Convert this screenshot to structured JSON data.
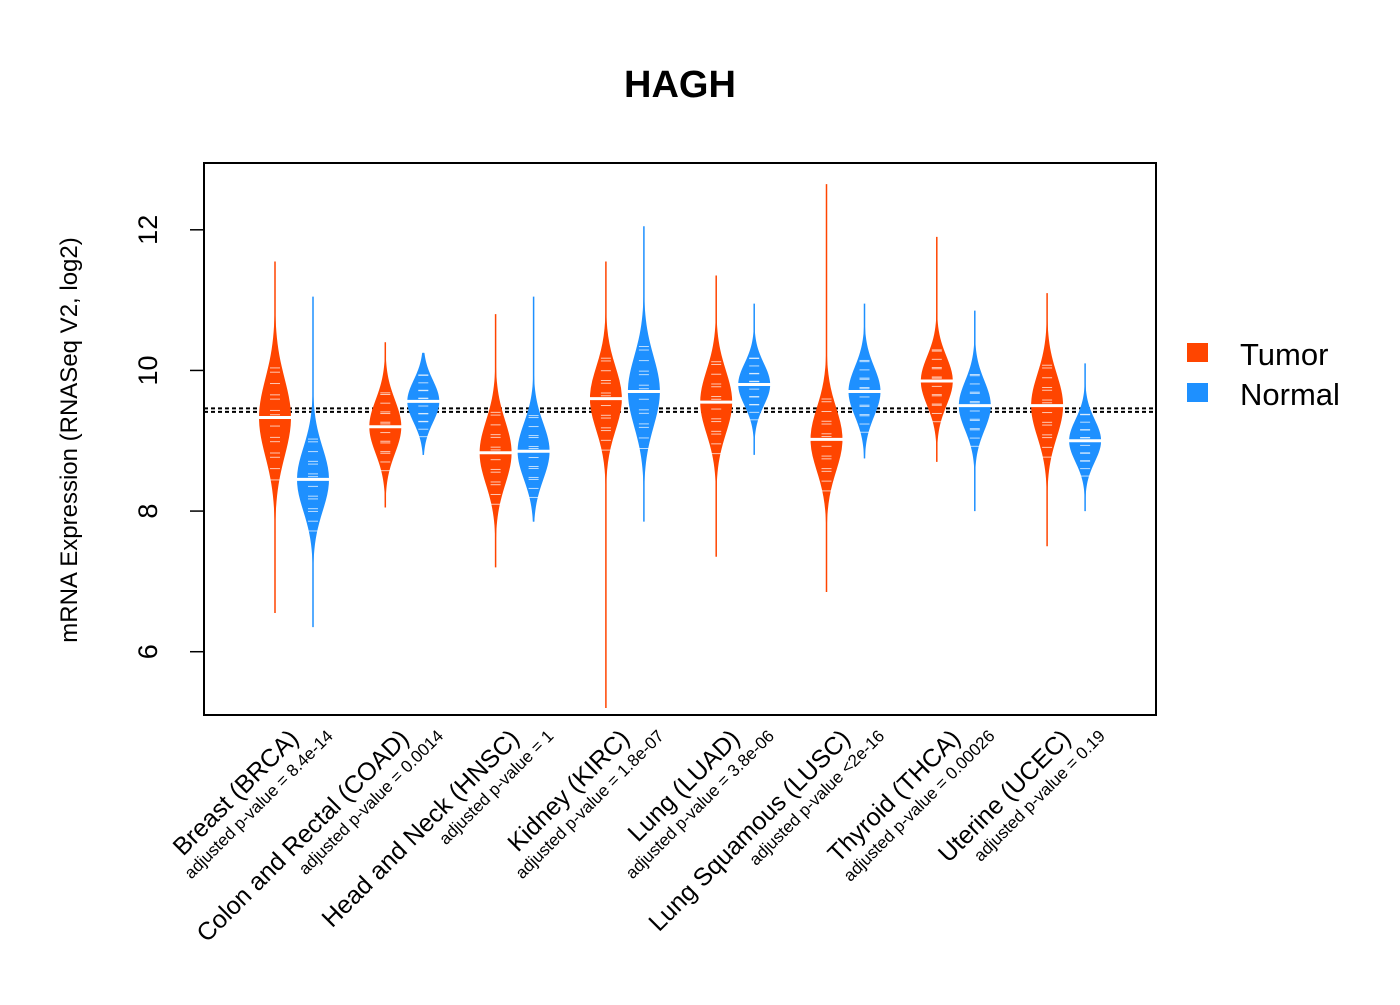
{
  "chart_data": {
    "type": "beanplot",
    "title": "HAGH",
    "ylabel": "mRNA Expression (RNASeq V2, log2)",
    "xlabel": "",
    "ylim": [
      5.1,
      12.95
    ],
    "yticks": [
      6,
      8,
      10,
      12
    ],
    "reference_lines": [
      9.46,
      9.41
    ],
    "legend": {
      "placement": "right",
      "entries": [
        {
          "label": "Tumor",
          "color": "#FF4500"
        },
        {
          "label": "Normal",
          "color": "#1E90FF"
        }
      ]
    },
    "categories": [
      {
        "label": "Breast (BRCA)",
        "pvalue": "adjusted p-value = 8.4e-14",
        "tumor": {
          "min": 6.55,
          "max": 11.55,
          "median": 9.33,
          "spread": 0.55
        },
        "normal": {
          "min": 6.35,
          "max": 11.05,
          "median": 8.45,
          "spread": 0.45
        }
      },
      {
        "label": "Colon and Rectal (COAD)",
        "pvalue": "adjusted p-value = 0.0014",
        "tumor": {
          "min": 8.05,
          "max": 10.4,
          "median": 9.2,
          "spread": 0.38
        },
        "normal": {
          "min": 8.8,
          "max": 10.25,
          "median": 9.56,
          "spread": 0.3
        }
      },
      {
        "label": "Head and Neck (HNSC)",
        "pvalue": "adjusted p-value = 1",
        "tumor": {
          "min": 7.2,
          "max": 10.8,
          "median": 8.83,
          "spread": 0.45
        },
        "normal": {
          "min": 7.85,
          "max": 11.05,
          "median": 8.85,
          "spread": 0.4
        }
      },
      {
        "label": "Kidney (KIRC)",
        "pvalue": "adjusted p-value = 1.8e-07",
        "tumor": {
          "min": 5.2,
          "max": 11.55,
          "median": 9.6,
          "spread": 0.45
        },
        "normal": {
          "min": 7.85,
          "max": 12.05,
          "median": 9.7,
          "spread": 0.5
        }
      },
      {
        "label": "Lung (LUAD)",
        "pvalue": "adjusted p-value = 3.8e-06",
        "tumor": {
          "min": 7.35,
          "max": 11.35,
          "median": 9.55,
          "spread": 0.45
        },
        "normal": {
          "min": 8.8,
          "max": 10.95,
          "median": 9.8,
          "spread": 0.3
        }
      },
      {
        "label": "Lung Squamous (LUSC)",
        "pvalue": "adjusted p-value <2e-16",
        "tumor": {
          "min": 6.85,
          "max": 12.65,
          "median": 9.02,
          "spread": 0.45
        },
        "normal": {
          "min": 8.75,
          "max": 10.95,
          "median": 9.7,
          "spread": 0.35
        }
      },
      {
        "label": "Thyroid (THCA)",
        "pvalue": "adjusted p-value = 0.00026",
        "tumor": {
          "min": 8.7,
          "max": 11.9,
          "median": 9.85,
          "spread": 0.35
        },
        "normal": {
          "min": 8.0,
          "max": 10.85,
          "median": 9.5,
          "spread": 0.35
        }
      },
      {
        "label": "Uterine (UCEC)",
        "pvalue": "adjusted p-value = 0.19",
        "tumor": {
          "min": 7.5,
          "max": 11.1,
          "median": 9.5,
          "spread": 0.45
        },
        "normal": {
          "min": 8.0,
          "max": 10.1,
          "median": 9.0,
          "spread": 0.3
        }
      }
    ]
  }
}
